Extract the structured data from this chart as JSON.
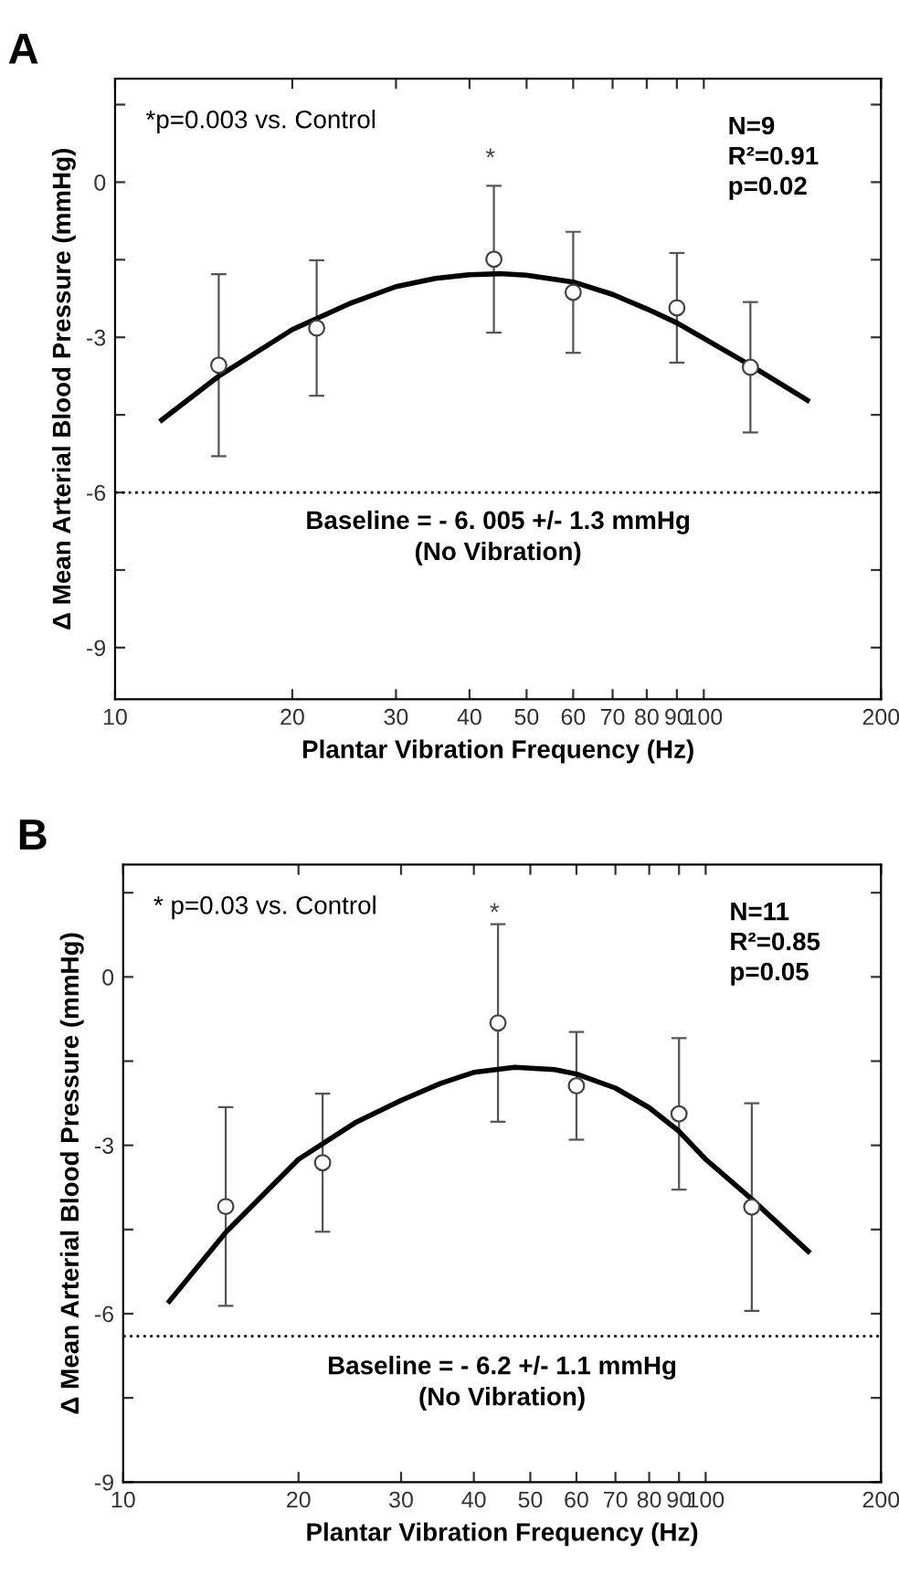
{
  "chart_data": [
    {
      "type": "scatter",
      "title": "A",
      "xlabel": "Plantar Vibration Frequency (Hz)",
      "ylabel": "Δ Mean Arterial Blood Pressure (mmHg)",
      "log": "x",
      "xlim": [
        10,
        200
      ],
      "xticks": [
        10,
        20,
        30,
        40,
        50,
        60,
        70,
        80,
        90,
        100,
        200
      ],
      "ylim": [
        -10,
        2
      ],
      "yticks": [
        {
          "value": -9,
          "label": "-9"
        },
        {
          "value": -7.5,
          "label": null
        },
        {
          "value": -6,
          "label": "-6"
        },
        {
          "value": -4.5,
          "label": null
        },
        {
          "value": -3,
          "label": "-3"
        },
        {
          "value": -1.5,
          "label": null
        },
        0,
        {
          "value": 1.5,
          "label": null
        }
      ],
      "grid": false,
      "legend": false,
      "series": [
        {
          "color": "#ffffff",
          "marker": "circle",
          "x": [
            15,
            22,
            44,
            60,
            90,
            120
          ],
          "values": [
            -3.54,
            -2.82,
            -1.49,
            -2.13,
            -2.43,
            -3.58
          ],
          "errors": [
            1.76,
            1.31,
            1.42,
            1.17,
            1.06,
            1.26
          ]
        },
        {
          "type": "line",
          "color": "#000000",
          "line_style": "solid",
          "x": [
            12,
            15,
            20,
            25,
            30,
            35,
            40,
            45,
            50,
            60,
            70,
            80,
            90,
            100,
            120,
            150
          ],
          "values": [
            -4.6,
            -3.75,
            -2.85,
            -2.35,
            -2.02,
            -1.86,
            -1.79,
            -1.77,
            -1.8,
            -1.93,
            -2.17,
            -2.45,
            -2.72,
            -3.02,
            -3.54,
            -4.22
          ]
        }
      ],
      "ref_lines": [
        {
          "axis": "y",
          "value": -6,
          "label": "Baseline = - 6. 005 +/- 1.3 mmHg\n(No Vibration)",
          "line_style": "dotted",
          "color": "#000000"
        }
      ],
      "annotations": [
        "*p=0.003 vs. Control",
        "N=9\nR²=0.91\np=0.02",
        "*"
      ]
    },
    {
      "type": "scatter",
      "title": "B",
      "xlabel": "Plantar Vibration Frequency (Hz)",
      "ylabel": "Δ Mean Arterial Blood Pressure (mmHg)",
      "log": "x",
      "xlim": [
        10,
        200
      ],
      "xticks": [
        10,
        20,
        30,
        40,
        50,
        60,
        70,
        80,
        90,
        100,
        200
      ],
      "ylim": [
        -9,
        2
      ],
      "yticks": [
        -9,
        {
          "value": -7.5,
          "label": null
        },
        {
          "value": -6,
          "label": "-6"
        },
        {
          "value": -4.5,
          "label": null
        },
        {
          "value": -3,
          "label": "-3"
        },
        {
          "value": -1.5,
          "label": null
        },
        0,
        {
          "value": 1.5,
          "label": null
        }
      ],
      "grid": false,
      "legend": false,
      "series": [
        {
          "color": "#ffffff",
          "marker": "circle",
          "x": [
            15,
            22,
            44,
            60,
            90,
            120
          ],
          "values": [
            -4.09,
            -3.31,
            -0.82,
            -1.94,
            -2.44,
            -4.1
          ],
          "errors": [
            1.77,
            1.23,
            1.76,
            0.96,
            1.35,
            1.85
          ]
        },
        {
          "type": "line",
          "color": "#000000",
          "line_style": "solid",
          "x": [
            12,
            15,
            20,
            25,
            30,
            35,
            40,
            47,
            55,
            60,
            70,
            80,
            90,
            100,
            120,
            150
          ],
          "values": [
            -5.78,
            -4.55,
            -3.25,
            -2.6,
            -2.2,
            -1.9,
            -1.7,
            -1.61,
            -1.65,
            -1.73,
            -1.98,
            -2.33,
            -2.75,
            -3.25,
            -3.96,
            -4.89
          ]
        }
      ],
      "ref_lines": [
        {
          "axis": "y",
          "value": -6.4,
          "label": "Baseline = - 6.2 +/- 1.1 mmHg\n(No Vibration)",
          "line_style": "dotted",
          "color": "#000000"
        }
      ],
      "annotations": [
        "* p=0.03 vs. Control",
        "N=11\nR²=0.85\np=0.05",
        "*"
      ]
    }
  ]
}
